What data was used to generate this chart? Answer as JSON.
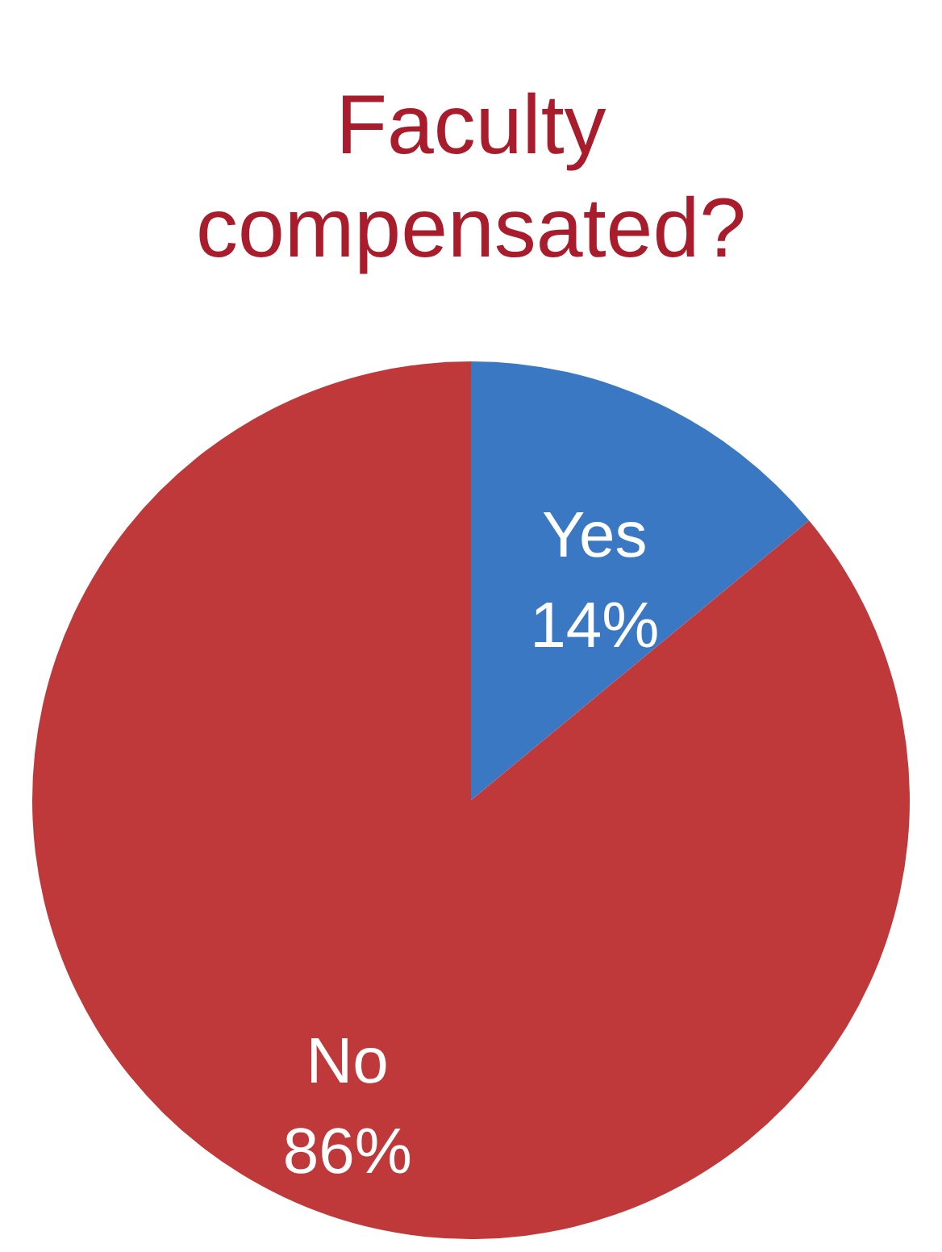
{
  "chart_data": {
    "type": "pie",
    "title": "Faculty compensated?",
    "categories": [
      "Yes",
      "No"
    ],
    "values": [
      14,
      86
    ],
    "colors": [
      "#3a78c4",
      "#c0393a"
    ],
    "value_labels": [
      "14%",
      "86%"
    ],
    "legend": false
  }
}
